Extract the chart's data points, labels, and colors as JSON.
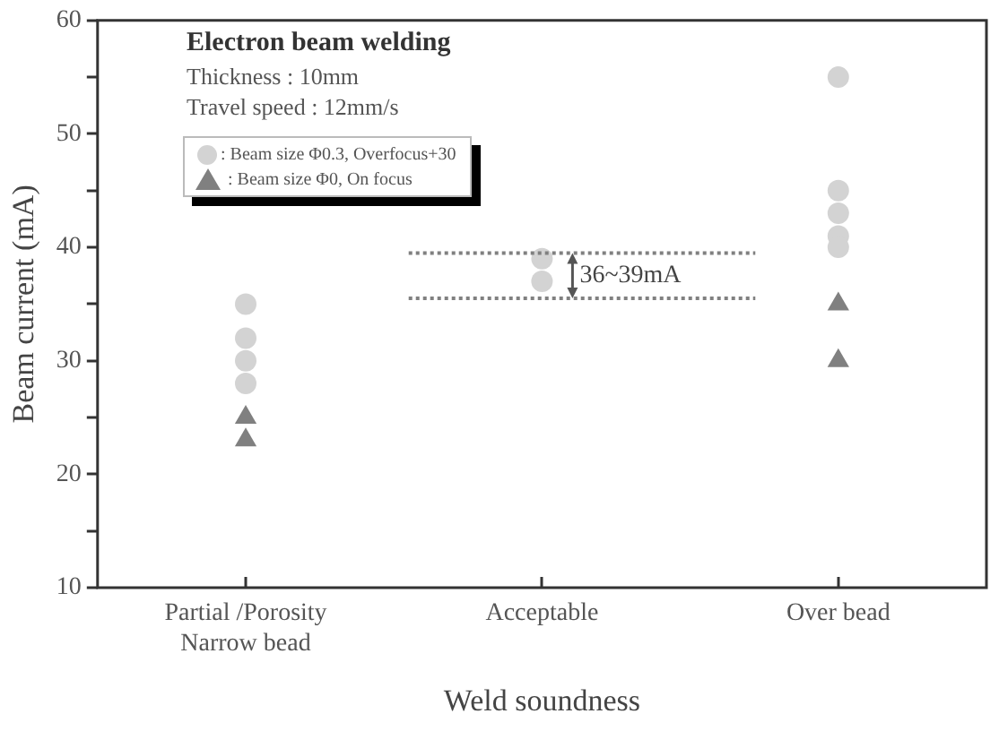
{
  "chart_data": {
    "type": "scatter",
    "title": "Electron beam welding",
    "categories": [
      "Partial /Porosity\nNarrow bead",
      "Acceptable",
      "Over bead"
    ],
    "xlabel": "Weld soundness",
    "ylabel": "Beam current (mA)",
    "ylim": [
      10,
      60
    ],
    "yticks": [
      10,
      {
        "value": 15,
        "label": null
      },
      20,
      {
        "value": 25,
        "label": null
      },
      30,
      {
        "value": 35,
        "label": null
      },
      40,
      {
        "value": 45,
        "label": null
      },
      50,
      {
        "value": 55,
        "label": null
      },
      60
    ],
    "series": [
      {
        "name": ": Beam size Φ0.3, Overfocus+30",
        "color": "#d3d3d3",
        "marker": "circle",
        "x": [
          "Partial /Porosity\nNarrow bead",
          "Partial /Porosity\nNarrow bead",
          "Partial /Porosity\nNarrow bead",
          "Partial /Porosity\nNarrow bead",
          "Acceptable",
          "Acceptable",
          "Over bead",
          "Over bead",
          "Over bead",
          "Over bead",
          "Over bead"
        ],
        "values": [
          35,
          32,
          30,
          28,
          39,
          37,
          55,
          45,
          43,
          41,
          40
        ]
      },
      {
        "name": ": Beam size Φ0, On focus",
        "color": "#808080",
        "marker": "triangle",
        "x": [
          "Partial /Porosity\nNarrow bead",
          "Partial /Porosity\nNarrow bead",
          "Over bead",
          "Over bead"
        ],
        "values": [
          25,
          23,
          35,
          30
        ]
      }
    ],
    "ref_lines": [
      {
        "axis": "y",
        "value": 39.5,
        "line_style": "dotted",
        "color": "#808080"
      },
      {
        "axis": "y",
        "value": 35.5,
        "line_style": "dotted",
        "color": "#808080"
      }
    ],
    "annotations": [
      "Thickness : 10mm",
      "Travel speed : 12mm/s",
      {
        "text": "36~39mA",
        "x": "Acceptable",
        "y": 37.5
      }
    ],
    "legend": "top left",
    "grid": false
  }
}
